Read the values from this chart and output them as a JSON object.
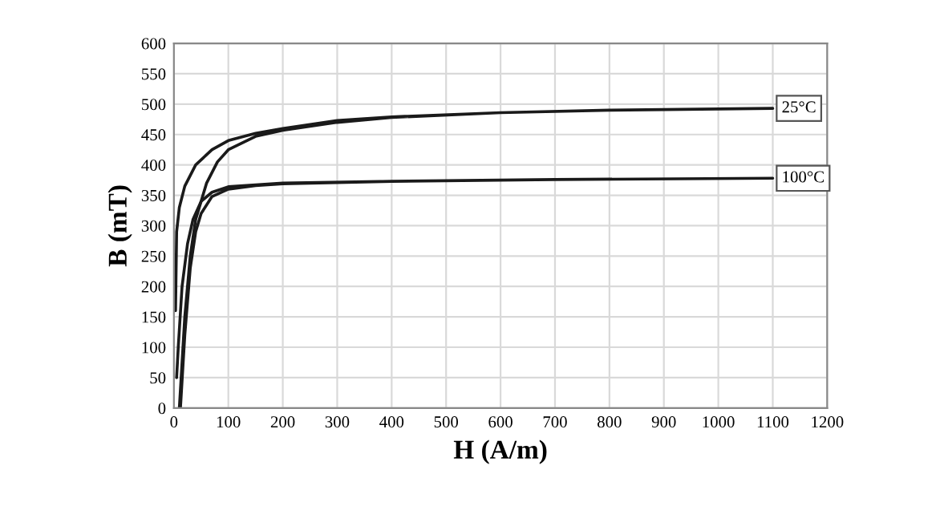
{
  "chart_data": {
    "type": "line",
    "xlabel": "H (A/m)",
    "ylabel": "B (mT)",
    "xlim": [
      0,
      1200
    ],
    "xticks": [
      0,
      100,
      200,
      300,
      400,
      500,
      600,
      700,
      800,
      900,
      1000,
      1100,
      1200
    ],
    "ylim": [
      0,
      600
    ],
    "yticks": [
      0,
      50,
      100,
      150,
      200,
      250,
      300,
      350,
      400,
      450,
      500,
      550,
      600
    ],
    "grid": true,
    "legend": false,
    "marker": "none",
    "line_style": "solid",
    "series": [
      {
        "name": "25°C",
        "color": "#1a1a1a",
        "x": [
          10,
          20,
          30,
          40,
          60,
          80,
          100,
          150,
          200,
          300,
          400,
          600,
          800,
          1100,
          800,
          600,
          400,
          300,
          200,
          150,
          100,
          70,
          40,
          20,
          10,
          5,
          3
        ],
        "values": [
          0,
          150,
          250,
          310,
          370,
          405,
          425,
          447,
          457,
          470,
          478,
          486,
          490,
          493,
          490,
          486,
          479,
          473,
          460,
          452,
          440,
          425,
          400,
          365,
          330,
          290,
          160
        ]
      },
      {
        "name": "100°C",
        "color": "#1a1a1a",
        "x": [
          12,
          20,
          30,
          40,
          50,
          70,
          100,
          150,
          200,
          400,
          700,
          1100,
          700,
          400,
          200,
          100,
          70,
          50,
          35,
          25,
          15,
          8,
          5
        ],
        "values": [
          0,
          120,
          230,
          290,
          320,
          348,
          360,
          366,
          369,
          373,
          376,
          378,
          376,
          373,
          370,
          364,
          355,
          340,
          310,
          270,
          200,
          100,
          50
        ]
      }
    ]
  }
}
